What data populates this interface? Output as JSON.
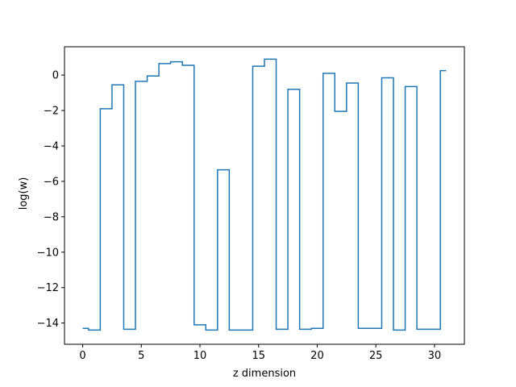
{
  "chart_data": {
    "type": "line",
    "drawstyle": "steps-mid",
    "title": "",
    "xlabel": "z dimension",
    "ylabel": "log(w)",
    "xlim": [
      -1.55,
      32.55
    ],
    "ylim": [
      -15.2,
      1.6
    ],
    "xticks": [
      0,
      5,
      10,
      15,
      20,
      25,
      30
    ],
    "yticks": [
      0,
      -2,
      -4,
      -6,
      -8,
      -10,
      -12,
      -14
    ],
    "xtick_labels": [
      "0",
      "5",
      "10",
      "15",
      "20",
      "25",
      "30"
    ],
    "ytick_labels": [
      "0",
      "−2",
      "−4",
      "−6",
      "−8",
      "−10",
      "−12",
      "−14"
    ],
    "grid": false,
    "series": [
      {
        "color": "#1f77b4",
        "x": [
          0,
          1,
          2,
          3,
          4,
          5,
          6,
          7,
          8,
          9,
          10,
          11,
          12,
          13,
          14,
          15,
          16,
          17,
          18,
          19,
          20,
          21,
          22,
          23,
          24,
          25,
          26,
          27,
          28,
          29,
          30,
          31
        ],
        "y": [
          -14.3,
          -14.4,
          -1.9,
          -0.55,
          -14.35,
          -0.35,
          -0.05,
          0.65,
          0.75,
          0.55,
          -14.1,
          -14.4,
          -5.35,
          -14.4,
          -14.4,
          0.5,
          0.9,
          -14.35,
          -0.8,
          -14.35,
          -14.3,
          0.1,
          -2.05,
          -0.45,
          -14.3,
          -14.3,
          -0.15,
          -14.4,
          -0.65,
          -14.35,
          -14.35,
          0.25
        ]
      }
    ]
  }
}
